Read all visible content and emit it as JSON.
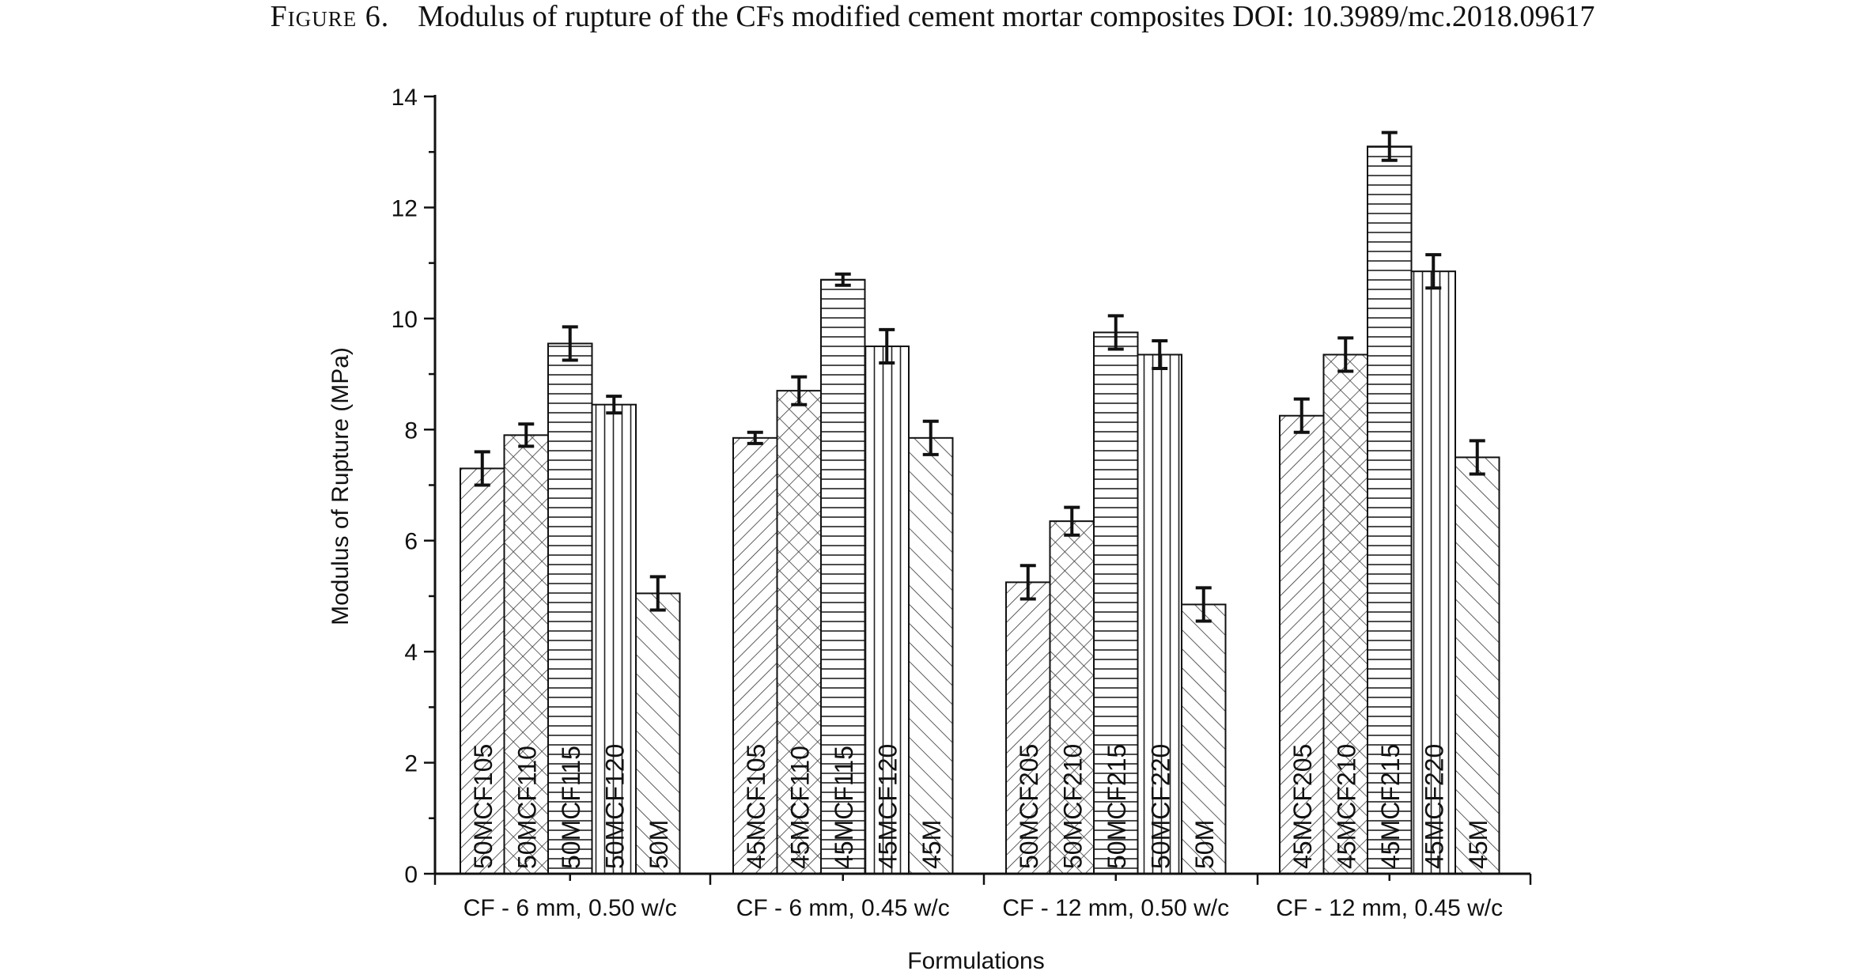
{
  "caption": {
    "label": "Figure 6.",
    "text": "Modulus of rupture of the CFs modified cement mortar composites DOI: 10.3989/mc.2018.09617"
  },
  "chart_data": {
    "type": "bar",
    "title": "",
    "xlabel": "Formulations",
    "ylabel": "Modulus of Rupture (MPa)",
    "ylim": [
      0,
      14
    ],
    "yticks": [
      0,
      2,
      4,
      6,
      8,
      10,
      12,
      14
    ],
    "grid": false,
    "legend": "none",
    "groups": [
      {
        "label": "CF - 6 mm, 0.50 w/c",
        "bars": [
          {
            "name": "50MCF105",
            "value": 7.3,
            "error": 0.3,
            "pattern": "diag-fwd"
          },
          {
            "name": "50MCF110",
            "value": 7.9,
            "error": 0.2,
            "pattern": "cross"
          },
          {
            "name": "50MCF115",
            "value": 9.55,
            "error": 0.3,
            "pattern": "horizontal"
          },
          {
            "name": "50MCF120",
            "value": 8.45,
            "error": 0.15,
            "pattern": "vertical"
          },
          {
            "name": "50M",
            "value": 5.05,
            "error": 0.3,
            "pattern": "diag-back"
          }
        ]
      },
      {
        "label": "CF - 6 mm, 0.45 w/c",
        "bars": [
          {
            "name": "45MCF105",
            "value": 7.85,
            "error": 0.1,
            "pattern": "diag-fwd"
          },
          {
            "name": "45MCF110",
            "value": 8.7,
            "error": 0.25,
            "pattern": "cross"
          },
          {
            "name": "45MCF115",
            "value": 10.7,
            "error": 0.1,
            "pattern": "horizontal"
          },
          {
            "name": "45MCF120",
            "value": 9.5,
            "error": 0.3,
            "pattern": "vertical"
          },
          {
            "name": "45M",
            "value": 7.85,
            "error": 0.3,
            "pattern": "diag-back"
          }
        ]
      },
      {
        "label": "CF - 12 mm, 0.50 w/c",
        "bars": [
          {
            "name": "50MCF205",
            "value": 5.25,
            "error": 0.3,
            "pattern": "diag-fwd"
          },
          {
            "name": "50MCF210",
            "value": 6.35,
            "error": 0.25,
            "pattern": "cross"
          },
          {
            "name": "50MCF215",
            "value": 9.75,
            "error": 0.3,
            "pattern": "horizontal"
          },
          {
            "name": "50MCF220",
            "value": 9.35,
            "error": 0.25,
            "pattern": "vertical"
          },
          {
            "name": "50M",
            "value": 4.85,
            "error": 0.3,
            "pattern": "diag-back"
          }
        ]
      },
      {
        "label": "CF - 12 mm, 0.45 w/c",
        "bars": [
          {
            "name": "45MCF205",
            "value": 8.25,
            "error": 0.3,
            "pattern": "diag-fwd"
          },
          {
            "name": "45MCF210",
            "value": 9.35,
            "error": 0.3,
            "pattern": "cross"
          },
          {
            "name": "45MCF215",
            "value": 13.1,
            "error": 0.25,
            "pattern": "horizontal"
          },
          {
            "name": "45MCF220",
            "value": 10.85,
            "error": 0.3,
            "pattern": "vertical"
          },
          {
            "name": "45M",
            "value": 7.5,
            "error": 0.3,
            "pattern": "diag-back"
          }
        ]
      }
    ]
  }
}
